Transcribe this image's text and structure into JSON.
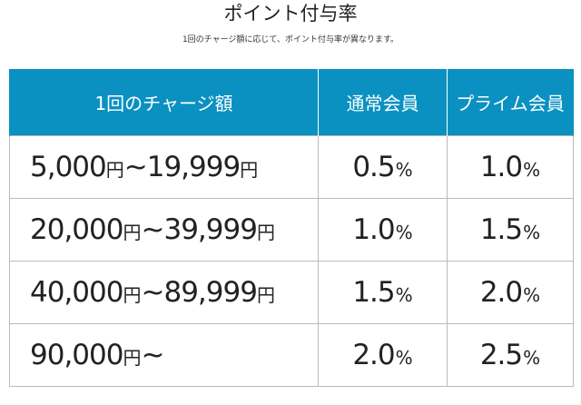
{
  "title": "ポイント付与率",
  "subtitle": "1回のチャージ額に応じて、ポイント付与率が異なります。",
  "table": {
    "headers": [
      "1回のチャージ額",
      "通常会員",
      "プライム会員"
    ],
    "rows": [
      {
        "range_from": "5,000",
        "unit_from": "円",
        "tilde": "~",
        "range_to": "19,999",
        "unit_to": "円",
        "normal_value": "0.5",
        "normal_unit": "%",
        "prime_value": "1.0",
        "prime_unit": "%"
      },
      {
        "range_from": "20,000",
        "unit_from": "円",
        "tilde": "~",
        "range_to": "39,999",
        "unit_to": "円",
        "normal_value": "1.0",
        "normal_unit": "%",
        "prime_value": "1.5",
        "prime_unit": "%"
      },
      {
        "range_from": "40,000",
        "unit_from": "円",
        "tilde": "~",
        "range_to": "89,999",
        "unit_to": "円",
        "normal_value": "1.5",
        "normal_unit": "%",
        "prime_value": "2.0",
        "prime_unit": "%"
      },
      {
        "range_from": "90,000",
        "unit_from": "円",
        "tilde": "~",
        "range_to": "",
        "unit_to": "",
        "normal_value": "2.0",
        "normal_unit": "%",
        "prime_value": "2.5",
        "prime_unit": "%"
      }
    ]
  },
  "colors": {
    "header_background": "#0a91c1",
    "header_text": "#ffffff",
    "border": "#bbbbbb",
    "text": "#222222"
  }
}
